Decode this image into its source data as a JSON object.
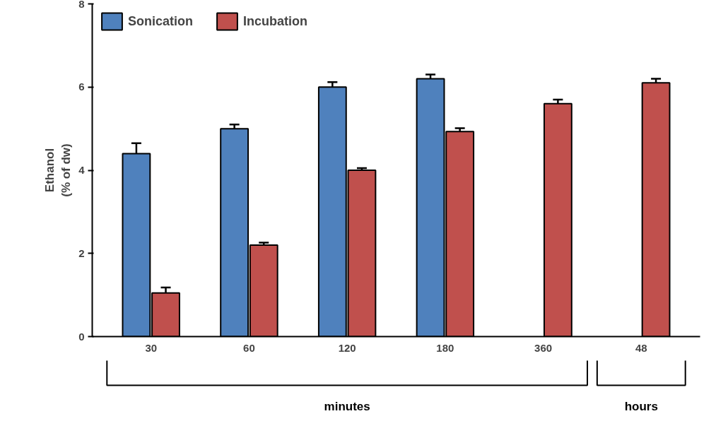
{
  "chart_data": {
    "type": "bar",
    "ylabel": "Ethanol\n(% of dw)",
    "categories": [
      "30",
      "60",
      "120",
      "180",
      "360",
      "48"
    ],
    "series": [
      {
        "name": "Sonication",
        "color": "#4f81bd",
        "values": [
          4.4,
          5.0,
          6.0,
          6.2,
          null,
          null
        ],
        "errors": [
          0.25,
          0.1,
          0.12,
          0.1,
          null,
          null
        ]
      },
      {
        "name": "Incubation",
        "color": "#c0504d",
        "values": [
          1.05,
          2.2,
          4.0,
          4.93,
          5.6,
          6.1
        ],
        "errors": [
          0.13,
          0.06,
          0.05,
          0.08,
          0.1,
          0.1
        ]
      }
    ],
    "ylim": [
      0,
      8
    ],
    "yticks": [
      0,
      2,
      4,
      6,
      8
    ],
    "grid": false,
    "legend": "top left",
    "annotations": [
      "minutes",
      "hours"
    ]
  }
}
